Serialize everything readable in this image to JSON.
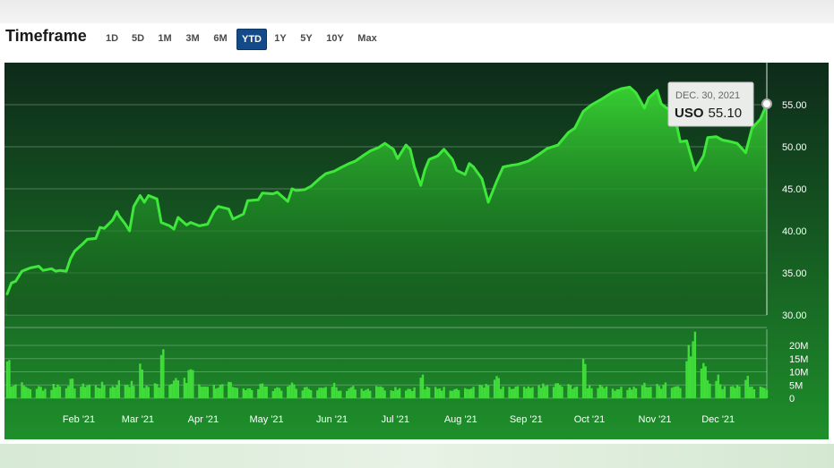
{
  "header": {
    "title": "Timeframe",
    "timeframes": [
      {
        "label": "1D",
        "active": false
      },
      {
        "label": "5D",
        "active": false
      },
      {
        "label": "1M",
        "active": false
      },
      {
        "label": "3M",
        "active": false
      },
      {
        "label": "6M",
        "active": false
      },
      {
        "label": "YTD",
        "active": true
      },
      {
        "label": "1Y",
        "active": false
      },
      {
        "label": "5Y",
        "active": false
      },
      {
        "label": "10Y",
        "active": false
      },
      {
        "label": "Max",
        "active": false
      }
    ]
  },
  "tooltip": {
    "date": "DEC. 30, 2021",
    "symbol": "USO",
    "value": "55.10"
  },
  "colors": {
    "line": "#3ee83a",
    "volume_bar": "#3fdc3a",
    "background_top": "#0e2a1a",
    "background_bottom": "#1e8f2a"
  },
  "chart_data": {
    "type": "area",
    "title": "",
    "xlabel": "",
    "ylabel": "",
    "ylim": [
      30,
      57.5
    ],
    "y_ticks": [
      "55.00",
      "50.00",
      "45.00",
      "40.00",
      "35.00",
      "30.00"
    ],
    "x_ticks": [
      {
        "label": "Feb '21",
        "date": "2021-02-01"
      },
      {
        "label": "Mar '21",
        "date": "2021-03-01"
      },
      {
        "label": "Apr '21",
        "date": "2021-04-01"
      },
      {
        "label": "May '21",
        "date": "2021-05-01"
      },
      {
        "label": "Jun '21",
        "date": "2021-06-01"
      },
      {
        "label": "Jul '21",
        "date": "2021-07-01"
      },
      {
        "label": "Aug '21",
        "date": "2021-08-01"
      },
      {
        "label": "Sep '21",
        "date": "2021-09-01"
      },
      {
        "label": "Oct '21",
        "date": "2021-10-01"
      },
      {
        "label": "Nov '21",
        "date": "2021-11-01"
      },
      {
        "label": "Dec '21",
        "date": "2021-12-01"
      }
    ],
    "series": [
      {
        "values": [
          [
            "2021-01-04",
            32.5
          ],
          [
            "2021-01-06",
            33.8
          ],
          [
            "2021-01-08",
            34.0
          ],
          [
            "2021-01-11",
            35.2
          ],
          [
            "2021-01-13",
            35.4
          ],
          [
            "2021-01-15",
            35.6
          ],
          [
            "2021-01-19",
            35.8
          ],
          [
            "2021-01-21",
            35.3
          ],
          [
            "2021-01-25",
            35.5
          ],
          [
            "2021-01-27",
            35.2
          ],
          [
            "2021-01-29",
            35.3
          ],
          [
            "2021-02-01",
            35.2
          ],
          [
            "2021-02-03",
            36.7
          ],
          [
            "2021-02-05",
            37.6
          ],
          [
            "2021-02-09",
            38.5
          ],
          [
            "2021-02-11",
            39.0
          ],
          [
            "2021-02-15",
            39.1
          ],
          [
            "2021-02-17",
            40.4
          ],
          [
            "2021-02-19",
            40.3
          ],
          [
            "2021-02-23",
            41.3
          ],
          [
            "2021-02-25",
            42.3
          ],
          [
            "2021-02-26",
            41.8
          ],
          [
            "2021-03-01",
            40.8
          ],
          [
            "2021-03-03",
            40.0
          ],
          [
            "2021-03-05",
            42.9
          ],
          [
            "2021-03-08",
            44.2
          ],
          [
            "2021-03-10",
            43.4
          ],
          [
            "2021-03-12",
            44.2
          ],
          [
            "2021-03-16",
            43.8
          ],
          [
            "2021-03-18",
            41.0
          ],
          [
            "2021-03-22",
            40.6
          ],
          [
            "2021-03-24",
            40.2
          ],
          [
            "2021-03-26",
            41.6
          ],
          [
            "2021-03-30",
            40.7
          ],
          [
            "2021-04-01",
            41.0
          ],
          [
            "2021-04-05",
            40.6
          ],
          [
            "2021-04-09",
            40.8
          ],
          [
            "2021-04-12",
            42.3
          ],
          [
            "2021-04-14",
            42.9
          ],
          [
            "2021-04-19",
            42.6
          ],
          [
            "2021-04-21",
            41.4
          ],
          [
            "2021-04-26",
            42.0
          ],
          [
            "2021-04-28",
            43.6
          ],
          [
            "2021-05-03",
            43.7
          ],
          [
            "2021-05-05",
            44.5
          ],
          [
            "2021-05-10",
            44.4
          ],
          [
            "2021-05-12",
            44.6
          ],
          [
            "2021-05-17",
            43.5
          ],
          [
            "2021-05-19",
            45.0
          ],
          [
            "2021-05-21",
            44.8
          ],
          [
            "2021-05-25",
            44.9
          ],
          [
            "2021-05-28",
            45.3
          ],
          [
            "2021-06-01",
            46.2
          ],
          [
            "2021-06-04",
            46.8
          ],
          [
            "2021-06-08",
            47.1
          ],
          [
            "2021-06-11",
            47.5
          ],
          [
            "2021-06-15",
            48.0
          ],
          [
            "2021-06-18",
            48.3
          ],
          [
            "2021-06-22",
            49.0
          ],
          [
            "2021-06-25",
            49.5
          ],
          [
            "2021-06-29",
            49.9
          ],
          [
            "2021-07-02",
            50.4
          ],
          [
            "2021-07-06",
            49.7
          ],
          [
            "2021-07-08",
            48.6
          ],
          [
            "2021-07-12",
            50.2
          ],
          [
            "2021-07-14",
            49.7
          ],
          [
            "2021-07-16",
            47.6
          ],
          [
            "2021-07-19",
            45.4
          ],
          [
            "2021-07-21",
            47.3
          ],
          [
            "2021-07-23",
            48.5
          ],
          [
            "2021-07-27",
            48.9
          ],
          [
            "2021-07-30",
            49.7
          ],
          [
            "2021-08-03",
            48.5
          ],
          [
            "2021-08-05",
            47.2
          ],
          [
            "2021-08-09",
            46.7
          ],
          [
            "2021-08-11",
            48.0
          ],
          [
            "2021-08-13",
            47.6
          ],
          [
            "2021-08-17",
            46.2
          ],
          [
            "2021-08-20",
            43.4
          ],
          [
            "2021-08-24",
            45.9
          ],
          [
            "2021-08-27",
            47.6
          ],
          [
            "2021-08-31",
            47.8
          ],
          [
            "2021-09-03",
            47.9
          ],
          [
            "2021-09-08",
            48.3
          ],
          [
            "2021-09-13",
            49.1
          ],
          [
            "2021-09-17",
            49.8
          ],
          [
            "2021-09-22",
            50.2
          ],
          [
            "2021-09-27",
            51.7
          ],
          [
            "2021-09-30",
            52.2
          ],
          [
            "2021-10-04",
            54.2
          ],
          [
            "2021-10-08",
            55.0
          ],
          [
            "2021-10-13",
            55.7
          ],
          [
            "2021-10-18",
            56.5
          ],
          [
            "2021-10-22",
            56.9
          ],
          [
            "2021-10-26",
            57.1
          ],
          [
            "2021-10-29",
            56.4
          ],
          [
            "2021-11-02",
            54.6
          ],
          [
            "2021-11-04",
            55.8
          ],
          [
            "2021-11-08",
            56.7
          ],
          [
            "2021-11-10",
            55.1
          ],
          [
            "2021-11-12",
            54.7
          ],
          [
            "2021-11-16",
            54.1
          ],
          [
            "2021-11-19",
            50.6
          ],
          [
            "2021-11-22",
            50.7
          ],
          [
            "2021-11-26",
            47.2
          ],
          [
            "2021-11-30",
            48.9
          ],
          [
            "2021-12-02",
            51.1
          ],
          [
            "2021-12-06",
            51.2
          ],
          [
            "2021-12-09",
            50.8
          ],
          [
            "2021-12-13",
            50.6
          ],
          [
            "2021-12-16",
            50.4
          ],
          [
            "2021-12-20",
            49.3
          ],
          [
            "2021-12-23",
            52.2
          ],
          [
            "2021-12-27",
            53.3
          ],
          [
            "2021-12-30",
            55.1
          ]
        ]
      }
    ],
    "volume": {
      "y_ticks": [
        "20M",
        "15M",
        "10M",
        "5M",
        "0"
      ],
      "ylim": [
        0,
        22
      ],
      "points": [
        [
          "2021-01-04",
          14
        ],
        [
          "2021-01-11",
          6
        ],
        [
          "2021-01-19",
          4
        ],
        [
          "2021-01-27",
          5
        ],
        [
          "2021-02-03",
          6
        ],
        [
          "2021-02-11",
          5
        ],
        [
          "2021-02-19",
          5
        ],
        [
          "2021-02-26",
          6
        ],
        [
          "2021-03-08",
          11
        ],
        [
          "2021-03-16",
          5
        ],
        [
          "2021-03-18",
          19
        ],
        [
          "2021-03-24",
          7
        ],
        [
          "2021-04-01",
          11
        ],
        [
          "2021-04-09",
          5
        ],
        [
          "2021-04-19",
          5
        ],
        [
          "2021-04-28",
          4
        ],
        [
          "2021-05-05",
          5
        ],
        [
          "2021-05-12",
          4
        ],
        [
          "2021-05-19",
          5
        ],
        [
          "2021-05-28",
          4
        ],
        [
          "2021-06-08",
          5
        ],
        [
          "2021-06-18",
          4
        ],
        [
          "2021-06-29",
          5
        ],
        [
          "2021-07-08",
          4
        ],
        [
          "2021-07-19",
          8
        ],
        [
          "2021-07-27",
          4
        ],
        [
          "2021-08-05",
          4
        ],
        [
          "2021-08-17",
          5
        ],
        [
          "2021-08-24",
          7
        ],
        [
          "2021-09-03",
          4
        ],
        [
          "2021-09-13",
          5
        ],
        [
          "2021-09-22",
          5
        ],
        [
          "2021-10-04",
          12
        ],
        [
          "2021-10-13",
          5
        ],
        [
          "2021-10-22",
          4
        ],
        [
          "2021-11-02",
          5
        ],
        [
          "2021-11-12",
          6
        ],
        [
          "2021-11-19",
          5
        ],
        [
          "2021-11-22",
          18
        ],
        [
          "2021-11-26",
          21
        ],
        [
          "2021-11-30",
          14
        ],
        [
          "2021-12-06",
          8
        ],
        [
          "2021-12-13",
          5
        ],
        [
          "2021-12-20",
          8
        ],
        [
          "2021-12-30",
          4
        ]
      ]
    }
  }
}
